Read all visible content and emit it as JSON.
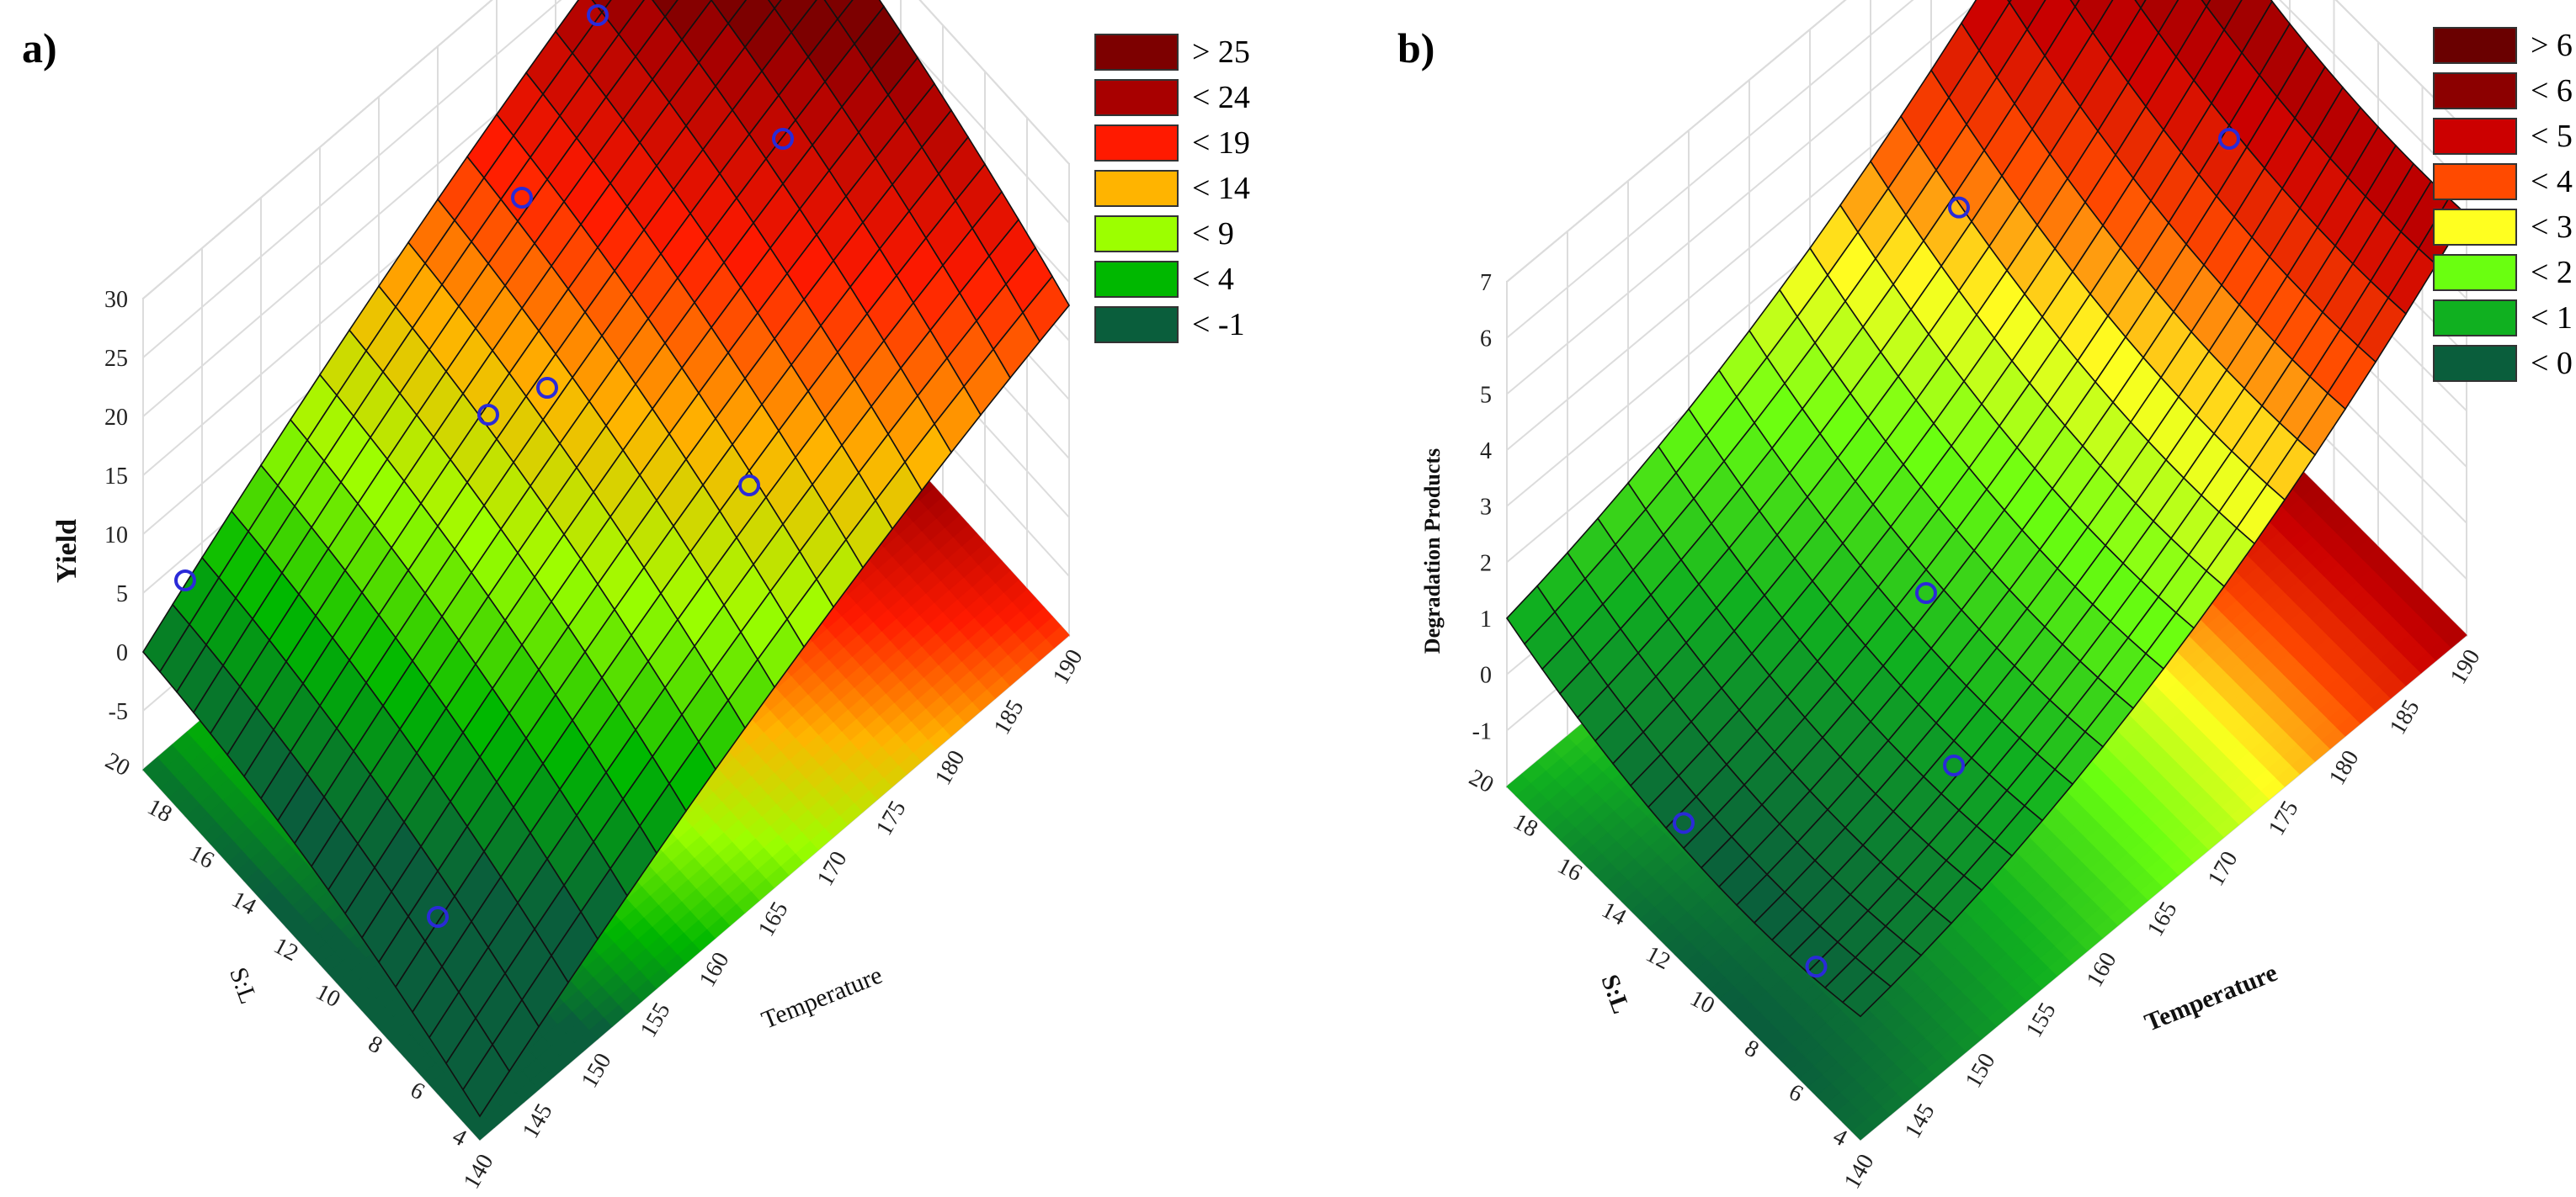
{
  "figure": {
    "panels": [
      "a)",
      "b)"
    ]
  },
  "chart_data": [
    {
      "type": "surface3d",
      "panel_label": "a)",
      "title": "",
      "zlabel": "Yield",
      "xlabel": "Temperature",
      "ylabel": "S:L",
      "x_ticks": [
        "140",
        "145",
        "150",
        "155",
        "160",
        "165",
        "170",
        "175",
        "180",
        "185",
        "190"
      ],
      "y_ticks": [
        "4",
        "6",
        "8",
        "10",
        "12",
        "14",
        "16",
        "18",
        "20"
      ],
      "z_ticks": [
        "-5",
        "0",
        "5",
        "10",
        "15",
        "20",
        "25",
        "30"
      ],
      "xlim": [
        140,
        190
      ],
      "ylim": [
        4,
        20
      ],
      "zlim": [
        -10,
        30
      ],
      "legend": [
        {
          "label": "> 25",
          "color": "#7d0000"
        },
        {
          "label": "< 24",
          "color": "#a80000"
        },
        {
          "label": "< 19",
          "color": "#ff1a00"
        },
        {
          "label": "< 14",
          "color": "#ffb400"
        },
        {
          "label": "< 9",
          "color": "#9cff00"
        },
        {
          "label": "< 4",
          "color": "#00b800"
        },
        {
          "label": "< -1",
          "color": "#0a5e3c"
        }
      ],
      "color_levels": [
        -1,
        4,
        9,
        14,
        19,
        24,
        25
      ],
      "observed_points": [
        {
          "T": 140,
          "SL": 18,
          "z": 10
        },
        {
          "T": 140,
          "SL": 6,
          "z": 5
        },
        {
          "T": 155,
          "SL": 12,
          "z": 23
        },
        {
          "T": 160,
          "SL": 12,
          "z": 21
        },
        {
          "T": 165,
          "SL": 16,
          "z": 25
        },
        {
          "T": 170,
          "SL": 8,
          "z": 12
        },
        {
          "T": 180,
          "SL": 12,
          "z": 25
        },
        {
          "T": 175,
          "SL": 18,
          "z": 28
        }
      ]
    },
    {
      "type": "surface3d",
      "panel_label": "b)",
      "title": "",
      "zlabel": "Degradation Products",
      "xlabel": "Temperature",
      "ylabel": "S:L",
      "x_ticks": [
        "140",
        "145",
        "150",
        "155",
        "160",
        "165",
        "170",
        "175",
        "180",
        "185",
        "190"
      ],
      "y_ticks": [
        "4",
        "6",
        "8",
        "10",
        "12",
        "14",
        "16",
        "18",
        "20"
      ],
      "z_ticks": [
        "-1",
        "0",
        "1",
        "2",
        "3",
        "4",
        "5",
        "6",
        "7"
      ],
      "xlim": [
        140,
        190
      ],
      "ylim": [
        4,
        20
      ],
      "zlim": [
        -2,
        7
      ],
      "legend": [
        {
          "label": "> 6",
          "color": "#6a0000"
        },
        {
          "label": "< 6",
          "color": "#8c0000"
        },
        {
          "label": "< 5",
          "color": "#cc0000"
        },
        {
          "label": "< 4",
          "color": "#ff4a00"
        },
        {
          "label": "< 3",
          "color": "#ffff20"
        },
        {
          "label": "< 2",
          "color": "#6aff10"
        },
        {
          "label": "< 1",
          "color": "#10b020"
        },
        {
          "label": "< 0",
          "color": "#0a5e3c"
        }
      ],
      "color_levels": [
        0,
        1,
        2,
        3,
        4,
        5,
        6,
        6.01
      ],
      "observed_points": [
        {
          "T": 140,
          "SL": 12,
          "z": 0.5
        },
        {
          "T": 140,
          "SL": 6,
          "z": 0.3
        },
        {
          "T": 155,
          "SL": 8,
          "z": 0.4
        },
        {
          "T": 160,
          "SL": 12,
          "z": 1.0
        },
        {
          "T": 170,
          "SL": 16,
          "z": 4.5
        },
        {
          "T": 185,
          "SL": 12,
          "z": 4.6
        }
      ]
    }
  ]
}
